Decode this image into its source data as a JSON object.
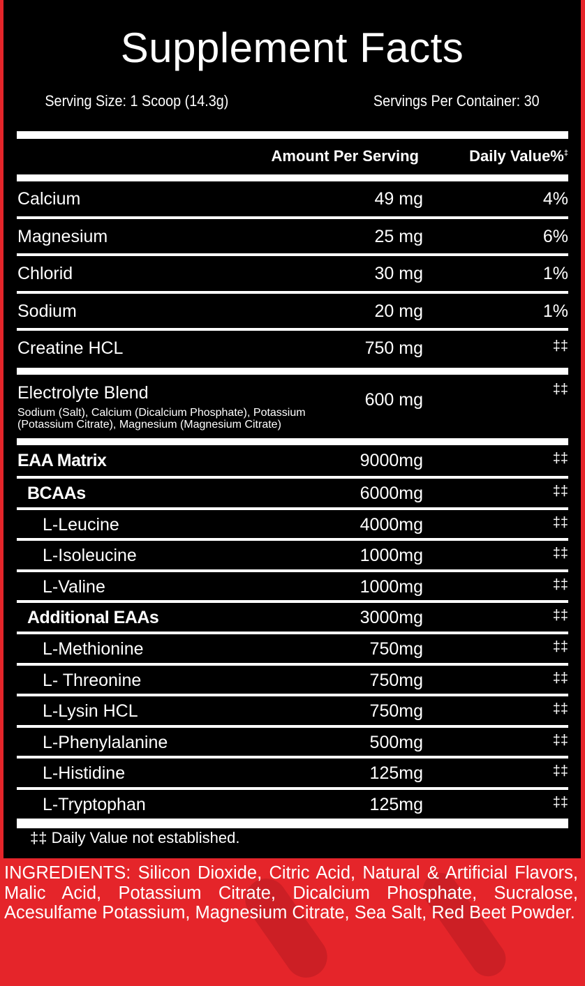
{
  "title": "Supplement Facts",
  "serving_size": "Serving Size: 1 Scoop (14.3g)",
  "servings_per_container": "Servings Per Container: 30",
  "header": {
    "amount": "Amount Per Serving",
    "daily_value": "Daily Value%",
    "daily_value_mark": "‡"
  },
  "rows": [
    {
      "name": "Calcium",
      "amount": "49 mg",
      "dv": "4%"
    },
    {
      "name": "Magnesium",
      "amount": "25 mg",
      "dv": "6%"
    },
    {
      "name": "Chlorid",
      "amount": "30 mg",
      "dv": "1%"
    },
    {
      "name": "Sodium",
      "amount": "20 mg",
      "dv": "1%"
    },
    {
      "name": "Creatine HCL",
      "amount": "750 mg",
      "dv": "‡‡"
    },
    {
      "name": "Electrolyte Blend",
      "amount": "600 mg",
      "dv": "‡‡",
      "sub": "Sodium (Salt), Calcium (Dicalcium Phosphate), Potassium (Potassium  Citrate), Magnesium (Magnesium Citrate)"
    },
    {
      "name": "EAA Matrix",
      "amount": "9000mg",
      "dv": "‡‡"
    },
    {
      "name": "BCAAs",
      "amount": "6000mg",
      "dv": "‡‡"
    },
    {
      "name": "L-Leucine",
      "amount": "4000mg",
      "dv": "‡‡"
    },
    {
      "name": "L-Isoleucine",
      "amount": "1000mg",
      "dv": "‡‡"
    },
    {
      "name": "L-Valine",
      "amount": "1000mg",
      "dv": "‡‡"
    },
    {
      "name": "Additional EAAs",
      "amount": "3000mg",
      "dv": "‡‡"
    },
    {
      "name": "L-Methionine",
      "amount": "750mg",
      "dv": "‡‡"
    },
    {
      "name": "L- Threonine",
      "amount": "750mg",
      "dv": "‡‡"
    },
    {
      "name": "L-Lysin HCL",
      "amount": "750mg",
      "dv": "‡‡"
    },
    {
      "name": "L-Phenylalanine",
      "amount": "500mg",
      "dv": "‡‡"
    },
    {
      "name": "L-Histidine",
      "amount": "125mg",
      "dv": "‡‡"
    },
    {
      "name": "L-Tryptophan",
      "amount": "125mg",
      "dv": "‡‡"
    }
  ],
  "footnote": "‡‡ Daily Value not established.",
  "ingredients": "INGREDIENTS: Silicon Dioxide, Citric Acid, Natural & Artificial Flavors, Malic Acid, Potassium Citrate, Dicalcium Phosphate, Sucralose, Acesulfame Potassium, Magnesium Citrate, Sea Salt, Red Beet Powder.",
  "colors": {
    "background": "#e5252a",
    "panel": "#000000",
    "text": "#ffffff"
  }
}
